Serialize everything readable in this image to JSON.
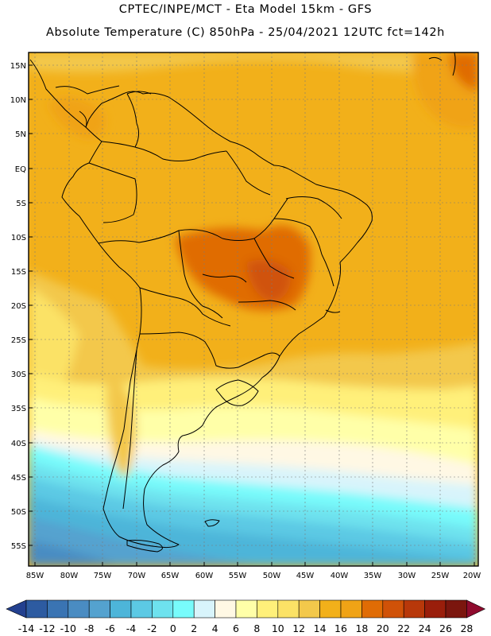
{
  "header": {
    "line1": "CPTEC/INPE/MCT -  Eta Model 15km - GFS",
    "line2": "Absolute Temperature (C) 850hPa - 25/04/2021 12UTC fct=142h"
  },
  "map": {
    "lat_labels": [
      "15N",
      "10N",
      "5N",
      "EQ",
      "5S",
      "10S",
      "15S",
      "20S",
      "25S",
      "30S",
      "35S",
      "40S",
      "45S",
      "50S",
      "55S"
    ],
    "lon_labels": [
      "85W",
      "80W",
      "75W",
      "70W",
      "65W",
      "60W",
      "55W",
      "50W",
      "45W",
      "40W",
      "35W",
      "30W",
      "25W",
      "20W"
    ]
  },
  "colorbar": {
    "colors": [
      "#23408f",
      "#2d5ba1",
      "#3a74b3",
      "#4a8cc2",
      "#54a2cf",
      "#4db5d9",
      "#5cc9e4",
      "#6ee2ee",
      "#78fbfb",
      "#d8f4fb",
      "#fff8e4",
      "#ffffa8",
      "#fff07a",
      "#fbe266",
      "#f3c84b",
      "#f2b01a",
      "#f0a316",
      "#e06c05",
      "#d05208",
      "#b8380a",
      "#9a1e0b",
      "#7b160e",
      "#8f0b2e"
    ],
    "labels": [
      "-14",
      "-12",
      "-10",
      "-8",
      "-6",
      "-4",
      "-2",
      "0",
      "2",
      "4",
      "6",
      "8",
      "10",
      "12",
      "14",
      "16",
      "18",
      "20",
      "22",
      "24",
      "26",
      "28"
    ]
  }
}
